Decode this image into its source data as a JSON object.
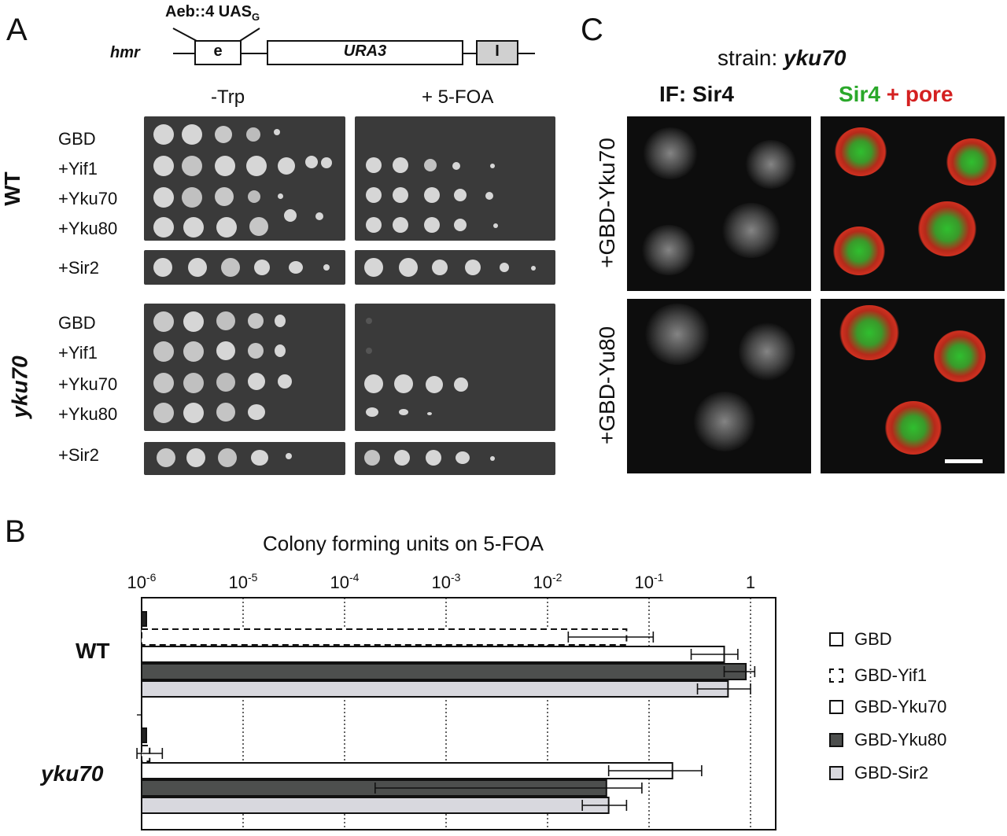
{
  "panels": {
    "a": "A",
    "b": "B",
    "c": "C"
  },
  "construct": {
    "locus": "hmr",
    "insert_main": "Aeb::4 UAS",
    "insert_sub": "G",
    "box_e": "e",
    "box_ura3": "URA3",
    "box_i": "I"
  },
  "plates": {
    "conditions": [
      "-Trp",
      "+ 5-FOA"
    ],
    "strains": [
      {
        "name": "WT",
        "rows": [
          "GBD",
          "+Yif1",
          "+Yku70",
          "+Yku80"
        ],
        "extra": "+Sir2"
      },
      {
        "name": "yku70",
        "rows": [
          "GBD",
          "+Yif1",
          "+Yku70",
          "+Yku80"
        ],
        "extra": "+Sir2"
      }
    ]
  },
  "if_panel": {
    "strain_prefix": "strain: ",
    "strain_name": "yku70",
    "col1": "IF: Sir4",
    "col2_green": "Sir4",
    "col2_red": " + pore",
    "row1": "+GBD-Yku70",
    "row2": "+GBD-Yu80",
    "colors": {
      "green": "#2aa82a",
      "red": "#d42020"
    }
  },
  "chart_data": {
    "type": "bar",
    "orientation": "horizontal",
    "title": "Colony forming units on 5-FOA",
    "xscale": "log",
    "xlim": [
      1e-06,
      1
    ],
    "tick_labels": [
      {
        "base": "10",
        "exp": "-6"
      },
      {
        "base": "10",
        "exp": "-5"
      },
      {
        "base": "10",
        "exp": "-4"
      },
      {
        "base": "10",
        "exp": "-3"
      },
      {
        "base": "10",
        "exp": "-2"
      },
      {
        "base": "10",
        "exp": "-1"
      },
      {
        "base": "1",
        "exp": ""
      }
    ],
    "tick_values": [
      1e-06,
      1e-05,
      0.0001,
      0.001,
      0.01,
      0.1,
      1
    ],
    "grid": "vertical dotted",
    "legend_position": "right",
    "categories": [
      "WT",
      "yku70"
    ],
    "series": [
      {
        "name": "GBD",
        "fill": "#ffffff",
        "dashed": false,
        "values": [
          1.1e-06,
          1.1e-06
        ],
        "err": [
          null,
          null
        ]
      },
      {
        "name": "GBD-Yif1",
        "fill": "#ffffff",
        "dashed": true,
        "values": [
          0.06,
          1.2e-06
        ],
        "err": [
          [
            0.016,
            0.11
          ],
          [
            9e-07,
            1.6e-06
          ]
        ]
      },
      {
        "name": "GBD-Yku70",
        "fill": "#ffffff",
        "dashed": false,
        "values": [
          0.55,
          0.17
        ],
        "err": [
          [
            0.26,
            0.75
          ],
          [
            0.04,
            0.33
          ]
        ]
      },
      {
        "name": "GBD-Yku80",
        "fill": "#4d4f4e",
        "dashed": false,
        "values": [
          0.9,
          0.038
        ],
        "err": [
          [
            0.55,
            1.1
          ],
          [
            0.0002,
            0.085
          ]
        ]
      },
      {
        "name": "GBD-Sir2",
        "fill": "#d8d8de",
        "dashed": false,
        "values": [
          0.6,
          0.04
        ],
        "err": [
          [
            0.3,
            1.0
          ],
          [
            0.022,
            0.06
          ]
        ]
      }
    ]
  }
}
